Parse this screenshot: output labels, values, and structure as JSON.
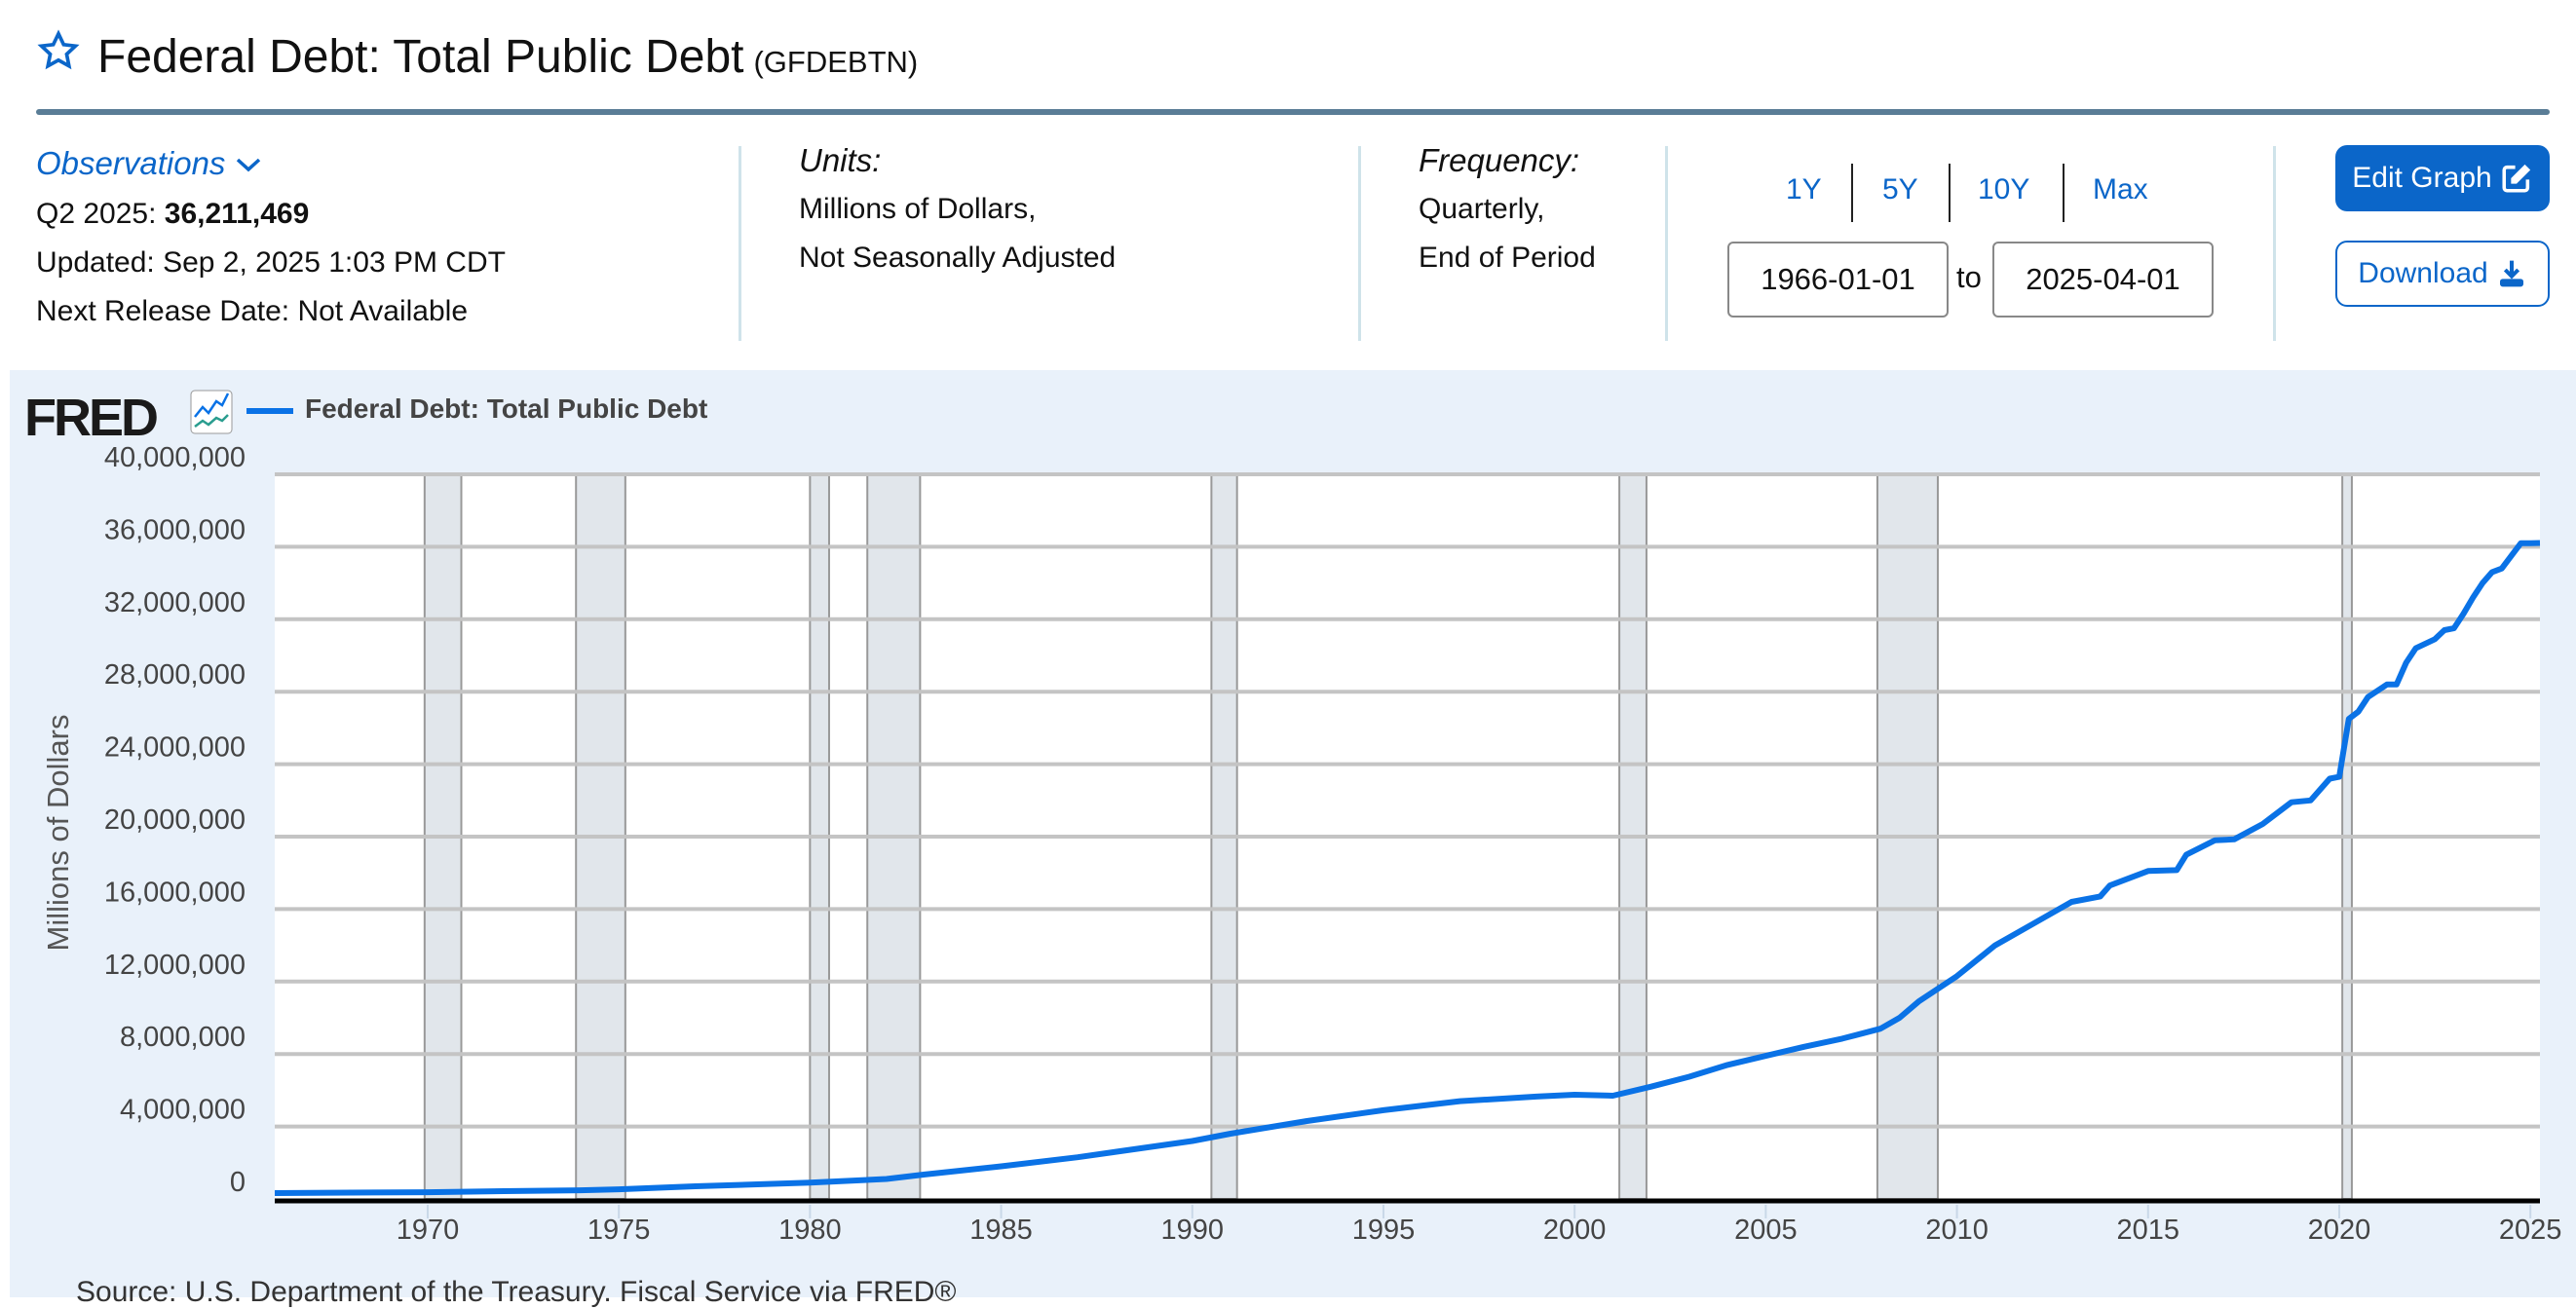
{
  "header": {
    "title": "Federal Debt: Total Public Debt",
    "series_id": "(GFDEBTN)",
    "observations_label": "Observations",
    "latest_period": "Q2 2025:",
    "latest_value": "36,211,469",
    "updated": "Updated: Sep 2, 2025 1:03 PM CDT",
    "next_release": "Next Release Date: Not Available",
    "units_label": "Units:",
    "units_line1": "Millions of Dollars,",
    "units_line2": "Not Seasonally Adjusted",
    "frequency_label": "Frequency:",
    "frequency_line1": "Quarterly,",
    "frequency_line2": "End of Period",
    "ranges": [
      "1Y",
      "5Y",
      "10Y",
      "Max"
    ],
    "start_date": "1966-01-01",
    "to_label": "to",
    "end_date": "2025-04-01",
    "edit_graph": "Edit Graph",
    "download": "Download"
  },
  "colors": {
    "accent": "#0b66c9",
    "series": "#0a72e6",
    "recession": "#e1e6eb",
    "panel": "#e9f1fa"
  },
  "logo": "FRED",
  "source": "Source: U.S. Department of the Treasury. Fiscal Service via FRED®",
  "chart_data": {
    "type": "line",
    "legend": "Federal Debt: Total Public Debt",
    "legend_placement": "top-left",
    "ylabel": "Millions of Dollars",
    "ylim": [
      0,
      40000000
    ],
    "xlim": [
      1966.0,
      2025.25
    ],
    "yticks": [
      "0",
      "4,000,000",
      "8,000,000",
      "12,000,000",
      "16,000,000",
      "20,000,000",
      "24,000,000",
      "28,000,000",
      "32,000,000",
      "36,000,000",
      "40,000,000"
    ],
    "xticks": [
      "1970",
      "1975",
      "1980",
      "1985",
      "1990",
      "1995",
      "2000",
      "2005",
      "2010",
      "2015",
      "2020",
      "2025"
    ],
    "grid": true,
    "recessions": [
      [
        1969.92,
        1970.88
      ],
      [
        1973.88,
        1975.17
      ],
      [
        1980.0,
        1980.5
      ],
      [
        1981.5,
        1982.88
      ],
      [
        1990.5,
        1991.17
      ],
      [
        2001.17,
        2001.88
      ],
      [
        2007.92,
        2009.5
      ],
      [
        2020.08,
        2020.33
      ]
    ],
    "series": [
      {
        "name": "Federal Debt: Total Public Debt",
        "points": [
          [
            1966.0,
            320000
          ],
          [
            1968.0,
            350000
          ],
          [
            1970.0,
            370000
          ],
          [
            1972.0,
            430000
          ],
          [
            1974.0,
            480000
          ],
          [
            1975.0,
            530000
          ],
          [
            1977.0,
            700000
          ],
          [
            1980.0,
            900000
          ],
          [
            1982.0,
            1100000
          ],
          [
            1983.0,
            1350000
          ],
          [
            1985.0,
            1800000
          ],
          [
            1987.0,
            2300000
          ],
          [
            1990.0,
            3200000
          ],
          [
            1991.0,
            3600000
          ],
          [
            1993.0,
            4300000
          ],
          [
            1995.0,
            4900000
          ],
          [
            1997.0,
            5400000
          ],
          [
            1999.0,
            5650000
          ],
          [
            2000.0,
            5750000
          ],
          [
            2001.0,
            5700000
          ],
          [
            2002.0,
            6200000
          ],
          [
            2003.0,
            6750000
          ],
          [
            2004.0,
            7400000
          ],
          [
            2005.0,
            7900000
          ],
          [
            2006.0,
            8400000
          ],
          [
            2007.0,
            8850000
          ],
          [
            2008.0,
            9400000
          ],
          [
            2008.5,
            10000000
          ],
          [
            2009.0,
            10900000
          ],
          [
            2010.0,
            12300000
          ],
          [
            2011.0,
            14000000
          ],
          [
            2012.0,
            15200000
          ],
          [
            2013.0,
            16400000
          ],
          [
            2013.75,
            16700000
          ],
          [
            2014.0,
            17300000
          ],
          [
            2015.0,
            18100000
          ],
          [
            2015.75,
            18150000
          ],
          [
            2016.0,
            19000000
          ],
          [
            2016.75,
            19800000
          ],
          [
            2017.25,
            19850000
          ],
          [
            2018.0,
            20700000
          ],
          [
            2018.75,
            21900000
          ],
          [
            2019.25,
            22000000
          ],
          [
            2019.75,
            23200000
          ],
          [
            2020.0,
            23300000
          ],
          [
            2020.25,
            26500000
          ],
          [
            2020.5,
            26900000
          ],
          [
            2020.75,
            27700000
          ],
          [
            2021.25,
            28400000
          ],
          [
            2021.5,
            28400000
          ],
          [
            2021.75,
            29600000
          ],
          [
            2022.0,
            30400000
          ],
          [
            2022.5,
            30900000
          ],
          [
            2022.75,
            31400000
          ],
          [
            2023.0,
            31500000
          ],
          [
            2023.25,
            32300000
          ],
          [
            2023.5,
            33200000
          ],
          [
            2023.75,
            34000000
          ],
          [
            2024.0,
            34600000
          ],
          [
            2024.25,
            34800000
          ],
          [
            2024.5,
            35500000
          ],
          [
            2024.75,
            36200000
          ],
          [
            2025.0,
            36200000
          ],
          [
            2025.25,
            36211469
          ]
        ]
      }
    ]
  }
}
